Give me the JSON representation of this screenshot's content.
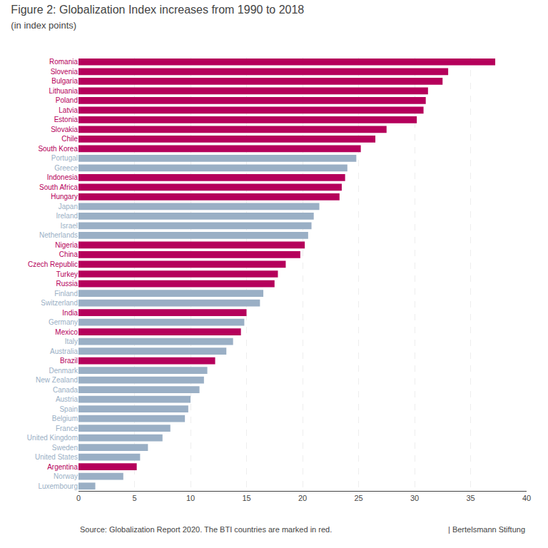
{
  "chart_data": {
    "type": "bar",
    "orientation": "horizontal",
    "title": "Figure 2: Globalization Index increases from 1990 to 2018",
    "subtitle": "(in index points)",
    "annotations": [
      "Source: Globalization Report 2020. The BTI countries are marked in red.",
      "| Bertelsmann Stiftung"
    ],
    "categories": [
      "Romania",
      "Slovenia",
      "Bulgaria",
      "Lithuania",
      "Poland",
      "Latvia",
      "Estonia",
      "Slovakia",
      "Chile",
      "South Korea",
      "Portugal",
      "Greece",
      "Indonesia",
      "South Africa",
      "Hungary",
      "Japan",
      "Ireland",
      "Israel",
      "Netherlands",
      "Nigeria",
      "China",
      "Czech Republic",
      "Turkey",
      "Russia",
      "Finland",
      "Switzerland",
      "India",
      "Germany",
      "Mexico",
      "Italy",
      "Australia",
      "Brazil",
      "Denmark",
      "New Zealand",
      "Canada",
      "Austria",
      "Spain",
      "Belgium",
      "France",
      "United Kingdom",
      "Sweden",
      "United States",
      "Argentina",
      "Norway",
      "Luxembourg"
    ],
    "values": [
      37.2,
      33.0,
      32.5,
      31.2,
      31.0,
      30.8,
      30.2,
      27.5,
      26.5,
      25.2,
      24.8,
      24.0,
      23.8,
      23.5,
      23.3,
      21.5,
      21.0,
      20.8,
      20.5,
      20.2,
      19.8,
      18.5,
      17.8,
      17.5,
      16.5,
      16.2,
      15.0,
      14.8,
      14.5,
      13.8,
      13.2,
      12.2,
      11.5,
      11.2,
      10.8,
      10.0,
      9.8,
      9.5,
      8.2,
      7.5,
      6.2,
      5.5,
      5.2,
      4.0,
      1.5
    ],
    "colors": [
      "#b5005b",
      "#b5005b",
      "#b5005b",
      "#b5005b",
      "#b5005b",
      "#b5005b",
      "#b5005b",
      "#b5005b",
      "#b5005b",
      "#b5005b",
      "#9aafc5",
      "#9aafc5",
      "#b5005b",
      "#b5005b",
      "#b5005b",
      "#9aafc5",
      "#9aafc5",
      "#9aafc5",
      "#9aafc5",
      "#b5005b",
      "#b5005b",
      "#b5005b",
      "#b5005b",
      "#b5005b",
      "#9aafc5",
      "#9aafc5",
      "#b5005b",
      "#9aafc5",
      "#b5005b",
      "#9aafc5",
      "#9aafc5",
      "#b5005b",
      "#9aafc5",
      "#9aafc5",
      "#9aafc5",
      "#9aafc5",
      "#9aafc5",
      "#9aafc5",
      "#9aafc5",
      "#9aafc5",
      "#9aafc5",
      "#9aafc5",
      "#b5005b",
      "#9aafc5",
      "#9aafc5"
    ],
    "xlim": [
      0,
      40
    ],
    "xticks": [
      0,
      5,
      10,
      15,
      20,
      25,
      30,
      35,
      40
    ],
    "grid": true
  }
}
